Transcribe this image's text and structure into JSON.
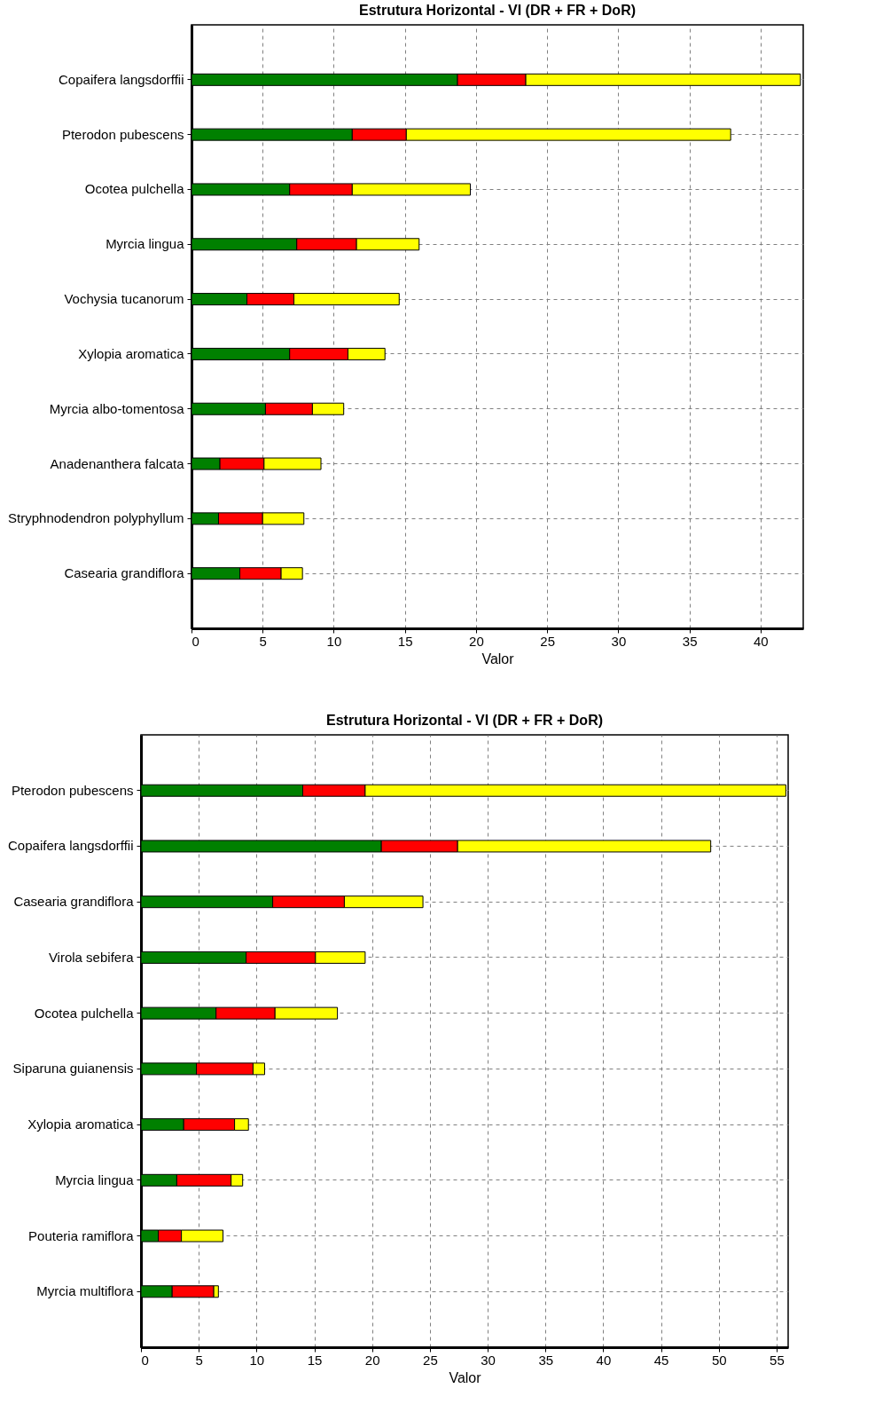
{
  "chart_data": [
    {
      "type": "bar",
      "orientation": "horizontal",
      "stacked": true,
      "title": "Estrutura Horizontal - VI (DR + FR + DoR)",
      "xlabel": "Valor",
      "grid": true,
      "xlim": [
        0,
        43
      ],
      "xticks": [
        0,
        5,
        10,
        15,
        20,
        25,
        30,
        35,
        40
      ],
      "categories": [
        "Copaifera langsdorffii",
        "Pterodon pubescens",
        "Ocotea pulchella",
        "Myrcia lingua",
        "Vochysia tucanorum",
        "Xylopia aromatica",
        "Myrcia albo-tomentosa",
        "Anadenanthera falcata",
        "Stryphnodendron polyphyllum",
        "Casearia grandiflora"
      ],
      "series": [
        {
          "color": "#008000",
          "values": [
            18.7,
            11.3,
            6.9,
            7.4,
            3.9,
            6.9,
            5.2,
            2.0,
            1.9,
            3.4
          ]
        },
        {
          "color": "#ff0000",
          "values": [
            4.8,
            3.8,
            4.4,
            4.2,
            3.3,
            4.1,
            3.3,
            3.1,
            3.1,
            2.9
          ]
        },
        {
          "color": "#ffff00",
          "values": [
            19.3,
            22.8,
            8.3,
            4.4,
            7.4,
            2.6,
            2.2,
            4.0,
            2.9,
            1.5
          ]
        }
      ]
    },
    {
      "type": "bar",
      "orientation": "horizontal",
      "stacked": true,
      "title": "Estrutura Horizontal - VI (DR + FR + DoR)",
      "xlabel": "Valor",
      "grid": true,
      "xlim": [
        0,
        56
      ],
      "xticks": [
        0,
        5,
        10,
        15,
        20,
        25,
        30,
        35,
        40,
        45,
        50,
        55
      ],
      "categories": [
        "Pterodon pubescens",
        "Copaifera langsdorffii",
        "Casearia grandiflora",
        "Virola sebifera",
        "Ocotea pulchella",
        "Siparuna guianensis",
        "Xylopia aromatica",
        "Myrcia lingua",
        "Pouteria ramiflora",
        "Myrcia multiflora"
      ],
      "series": [
        {
          "color": "#008000",
          "values": [
            14.0,
            20.8,
            11.4,
            9.1,
            6.5,
            4.8,
            3.7,
            3.1,
            1.5,
            2.7
          ]
        },
        {
          "color": "#ff0000",
          "values": [
            5.4,
            6.6,
            6.2,
            6.0,
            5.1,
            4.9,
            4.4,
            4.7,
            2.0,
            3.6
          ]
        },
        {
          "color": "#ffff00",
          "values": [
            36.4,
            21.9,
            6.8,
            4.3,
            5.4,
            1.0,
            1.2,
            1.0,
            3.6,
            0.4
          ]
        }
      ]
    }
  ]
}
